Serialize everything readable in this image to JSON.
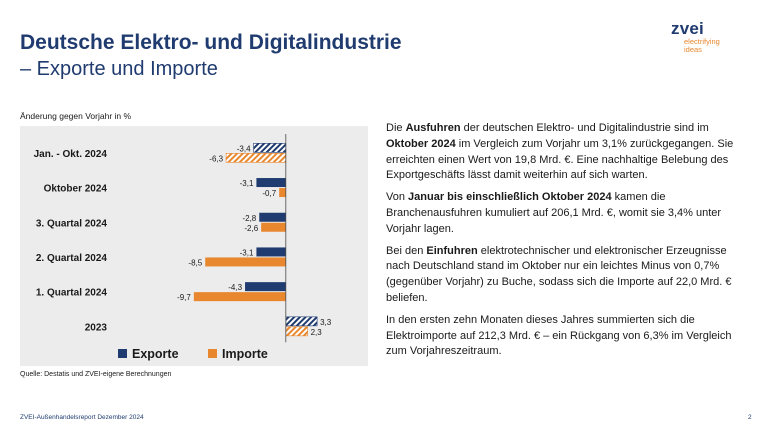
{
  "slide": {
    "title_line1": "Deutsche Elektro- und Digitalindustrie",
    "title_line2": "– Exporte und Importe",
    "logo_word": "zvei",
    "logo_tag_1": "electrifying",
    "logo_tag_2": "ideas",
    "footer": "ZVEI-Außenhandelsreport Dezember 2024",
    "page": "2"
  },
  "chart_data": {
    "type": "bar",
    "orientation": "horizontal",
    "ylabel": "Änderung gegen Vorjahr in %",
    "source": "Quelle: Destatis und ZVEI-eigene Berechnungen",
    "categories": [
      "Jan. - Okt. 2024",
      "Oktober 2024",
      "3. Quartal 2024",
      "2. Quartal 2024",
      "1. Quartal 2024",
      "2023"
    ],
    "series": [
      {
        "name": "Exporte",
        "color": "#1f3b6f",
        "values": [
          -3.4,
          -3.1,
          -2.8,
          -3.1,
          -4.3,
          3.3
        ],
        "labels": [
          "-3,4",
          "-3,1",
          "-2,8",
          "-3,1",
          "-4,3",
          "3,3"
        ],
        "hatched": [
          true,
          false,
          false,
          false,
          false,
          true
        ]
      },
      {
        "name": "Importe",
        "color": "#e8872e",
        "values": [
          -6.3,
          -0.7,
          -2.6,
          -8.5,
          -9.7,
          2.3
        ],
        "labels": [
          "-6,3",
          "-0,7",
          "-2,6",
          "-8,5",
          "-9,7",
          "2,3"
        ],
        "hatched": [
          true,
          false,
          false,
          false,
          false,
          true
        ]
      }
    ],
    "xlim": [
      -10,
      3.5
    ],
    "legend_position": "bottom"
  },
  "text": {
    "p1_a": "Die ",
    "p1_b": "Ausfuhren",
    "p1_c": " der deutschen Elektro- und Digitalindustrie sind im ",
    "p1_d": "Oktober 2024",
    "p1_e": " im Vergleich zum Vorjahr um 3,1% zurückgegangen. Sie erreichten einen Wert von 19,8 Mrd. €. Eine nachhaltige Belebung des Exportgeschäfts lässt damit weiterhin auf sich warten.",
    "p2_a": "Von ",
    "p2_b": "Januar bis einschließlich Oktober 2024",
    "p2_c": " kamen die Branchenausfuhren kumuliert auf 206,1 Mrd. €, womit sie 3,4% unter Vorjahr lagen.",
    "p3_a": "Bei den ",
    "p3_b": "Einfuhren",
    "p3_c": " elektrotechnischer und elektronischer Erzeugnisse nach Deutschland stand im Oktober nur ein leichtes Minus von 0,7% (gegenüber Vorjahr) zu Buche, sodass sich die Importe auf 22,0 Mrd. € beliefen.",
    "p4": "In den ersten zehn Monaten dieses Jahres summierten sich die Elektroimporte auf 212,3 Mrd. € – ein Rückgang von 6,3% im Vergleich zum Vorjahreszeitraum."
  }
}
